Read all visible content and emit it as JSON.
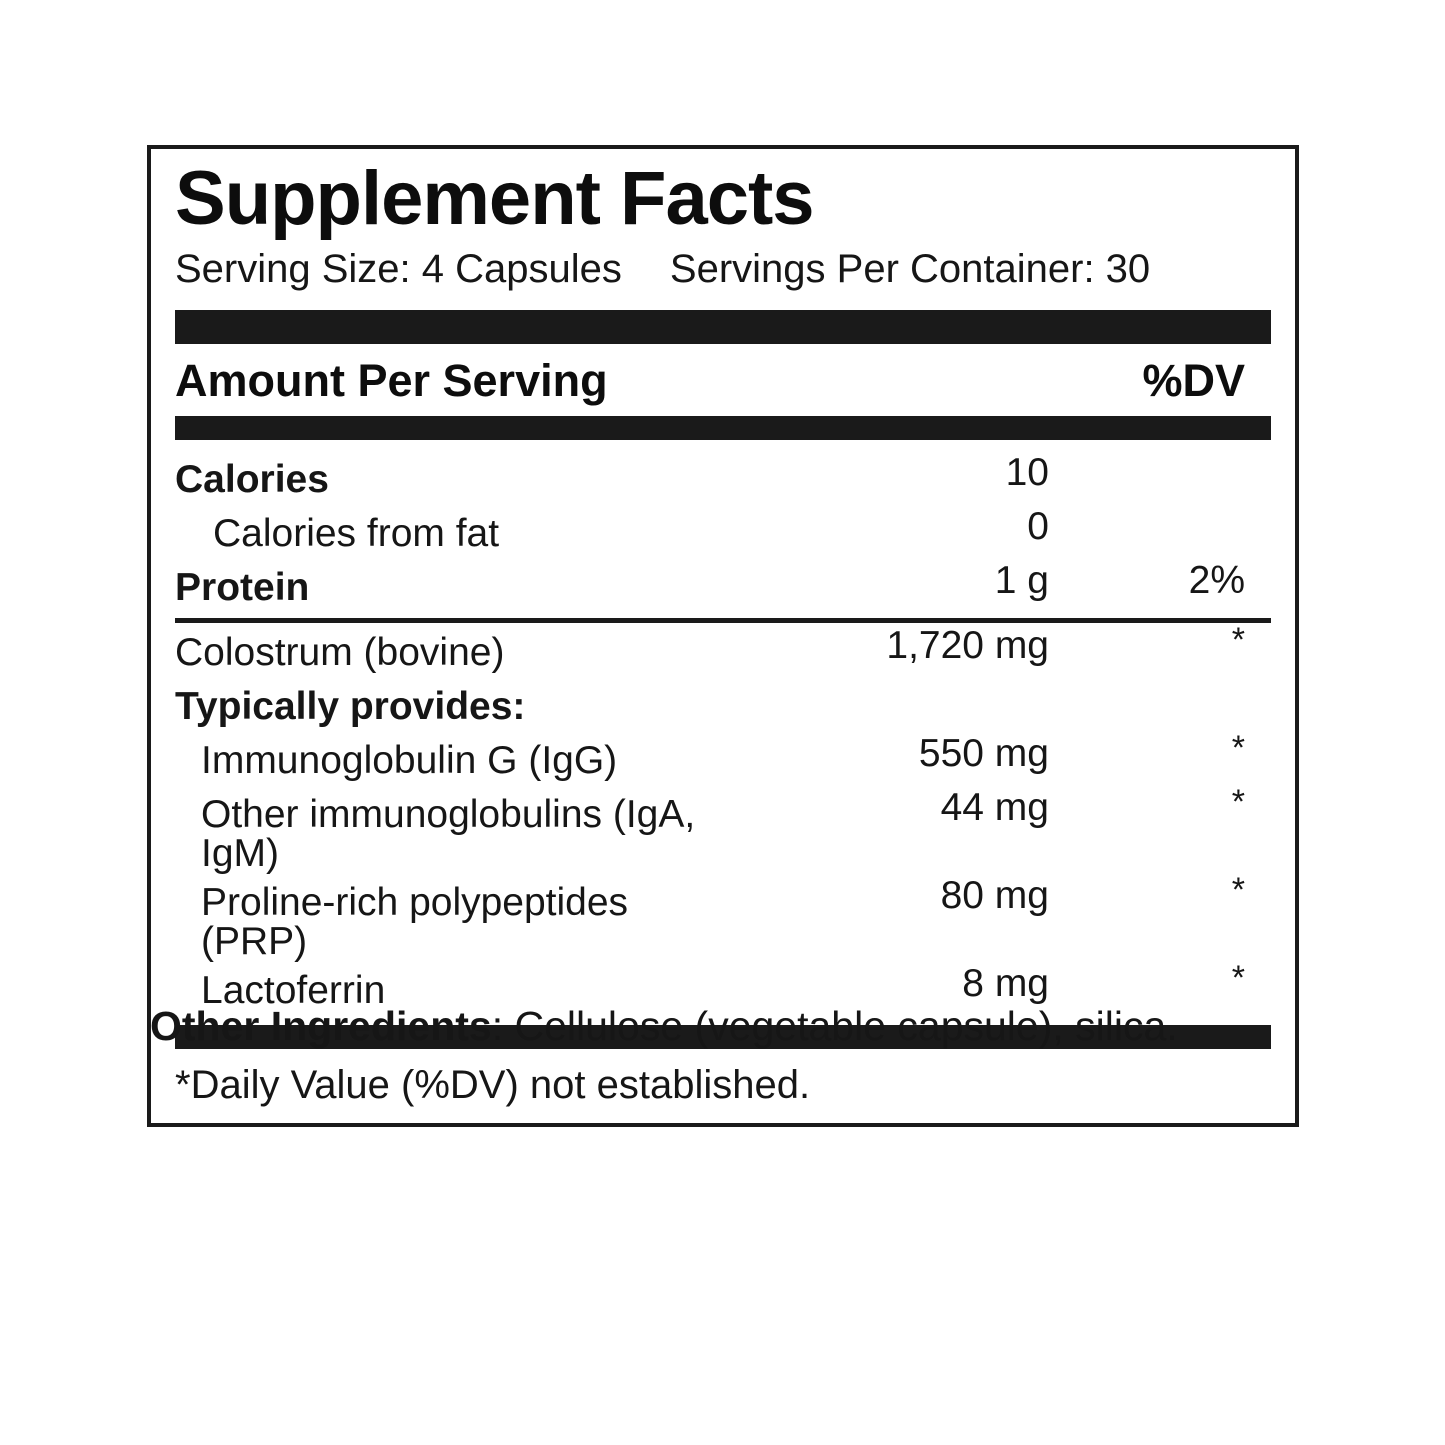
{
  "panel": {
    "title": "Supplement Facts",
    "serving_size": "Serving Size: 4 Capsules",
    "servings_per_container": "Servings Per Container: 30",
    "header": {
      "amount_label": "Amount Per Serving",
      "dv_label": "%DV"
    },
    "rows": [
      {
        "name": "Calories",
        "amount": "10",
        "dv": ""
      },
      {
        "name": "Calories from fat",
        "amount": "0",
        "dv": ""
      },
      {
        "name": "Protein",
        "amount": "1 g",
        "dv": "2%"
      },
      {
        "name": "Colostrum (bovine)",
        "amount": "1,720 mg",
        "dv": "*"
      },
      {
        "name": "Typically provides:",
        "amount": "",
        "dv": ""
      },
      {
        "name": "Immunoglobulin G (IgG)",
        "amount": "550 mg",
        "dv": "*"
      },
      {
        "name": "Other immunoglobulins (IgA, IgM)",
        "amount": "44 mg",
        "dv": "*"
      },
      {
        "name": "Proline-rich polypeptides (PRP)",
        "amount": "80 mg",
        "dv": "*"
      },
      {
        "name": "Lactoferrin",
        "amount": "8 mg",
        "dv": "*"
      }
    ],
    "footnote": "*Daily Value (%DV) not established."
  },
  "other_ingredients": {
    "label": "Other Ingredients",
    "text": ": Cellulose (vegetable capsule), silica."
  },
  "colors": {
    "ink": "#111111",
    "bar": "#1a1a1a",
    "background": "#ffffff"
  }
}
